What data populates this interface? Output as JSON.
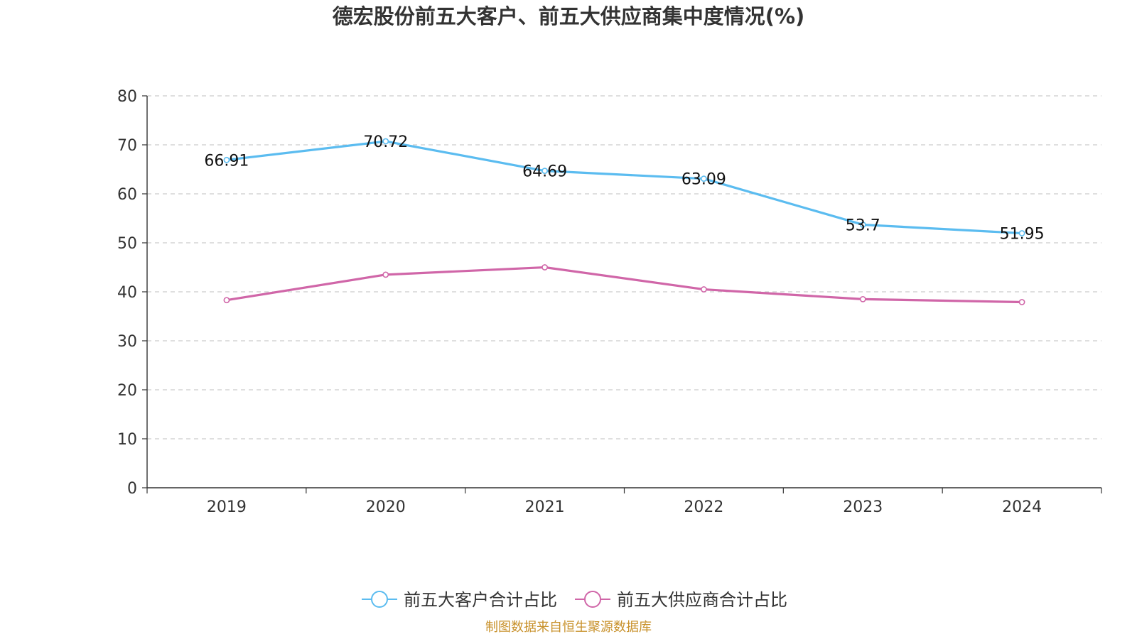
{
  "chart_data": {
    "type": "line",
    "title": "德宏股份前五大客户、前五大供应商集中度情况(%)",
    "xlabel": "",
    "ylabel": "",
    "categories": [
      "2019",
      "2020",
      "2021",
      "2022",
      "2023",
      "2024"
    ],
    "ylim": [
      0,
      80
    ],
    "yticks": [
      "0",
      "10",
      "20",
      "30",
      "40",
      "50",
      "60",
      "70",
      "80"
    ],
    "grid": true,
    "legend_position": "bottom-center",
    "series": [
      {
        "name": "前五大客户合计占比",
        "color": "#5bbcf0",
        "values": [
          66.91,
          70.72,
          64.69,
          63.09,
          53.7,
          51.95
        ],
        "labels": [
          "66.91",
          "70.72",
          "64.69",
          "63.09",
          "53.7",
          "51.95"
        ],
        "show_labels": true
      },
      {
        "name": "前五大供应商合计占比",
        "color": "#d066a8",
        "values": [
          38.3,
          43.5,
          45.0,
          40.5,
          38.5,
          37.9
        ],
        "show_labels": false
      }
    ],
    "source": "制图数据来自恒生聚源数据库"
  }
}
